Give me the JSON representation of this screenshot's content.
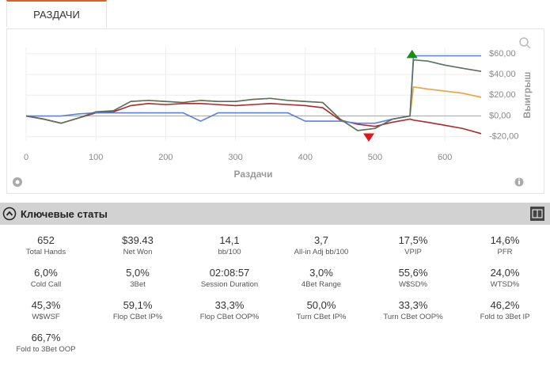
{
  "tab": {
    "label": "РАЗДАЧИ"
  },
  "chart_data": {
    "type": "line",
    "x_label": "Раздачи",
    "y_label": "Выигрыш",
    "x": [
      0,
      25,
      50,
      75,
      100,
      125,
      150,
      175,
      200,
      225,
      250,
      275,
      300,
      325,
      350,
      375,
      400,
      425,
      450,
      475,
      500,
      525,
      550,
      555,
      575,
      600,
      625,
      652
    ],
    "series": [
      {
        "color": "#f0a040",
        "values": [
          0,
          -3,
          -7,
          -2,
          4,
          5,
          14,
          15,
          14,
          13,
          15,
          14,
          14,
          16,
          17,
          15,
          14,
          13,
          -3,
          -14,
          -12,
          -3,
          0,
          28,
          26,
          24,
          22,
          18
        ]
      },
      {
        "color": "#b02828",
        "values": [
          0,
          -3,
          -7,
          -2,
          3,
          4,
          10,
          12,
          11,
          12,
          12,
          11,
          10,
          11,
          12,
          11,
          10,
          8,
          -4,
          -8,
          -10,
          -6,
          -3,
          -4,
          -6,
          -9,
          -12,
          -17
        ]
      },
      {
        "color": "#5b80e6",
        "values": [
          0,
          0,
          0,
          2,
          3,
          3,
          3,
          3,
          3,
          3,
          -5,
          3,
          3,
          3,
          3,
          3,
          -5,
          -5,
          -5,
          -7,
          -7,
          -3,
          0,
          58,
          58,
          58,
          58,
          58
        ]
      },
      {
        "color": "#5a7060",
        "values": [
          0,
          -3,
          -7,
          -2,
          4,
          5,
          14,
          15,
          14,
          13,
          15,
          14,
          14,
          16,
          17,
          15,
          14,
          13,
          -3,
          -14,
          -12,
          -3,
          0,
          54,
          53,
          49,
          46,
          43
        ]
      }
    ],
    "markers": [
      {
        "x": 553,
        "y": 59,
        "color": "#1a8a1a",
        "shape": "up"
      },
      {
        "x": 491,
        "y": -20,
        "color": "#e01818",
        "shape": "down"
      }
    ],
    "xlim": [
      0,
      652
    ],
    "xticks": [
      0,
      100,
      200,
      300,
      400,
      500,
      600
    ],
    "ylim": [
      -24,
      66
    ],
    "yticks": [
      {
        "value": -20,
        "label": "-$20,00"
      },
      {
        "value": 0,
        "label": "$0,00"
      },
      {
        "value": 20,
        "label": "$20,00"
      },
      {
        "value": 40,
        "label": "$40,00"
      },
      {
        "value": 60,
        "label": "$60,00"
      }
    ],
    "grid": true
  },
  "stats": {
    "title": "Ключевые статы",
    "items": [
      {
        "value": "652",
        "label": "Total Hands"
      },
      {
        "value": "$39.43",
        "label": "Net Won"
      },
      {
        "value": "14,1",
        "label": "bb/100"
      },
      {
        "value": "3,7",
        "label": "All-in Adj bb/100"
      },
      {
        "value": "17,5%",
        "label": "VPIP"
      },
      {
        "value": "14,6%",
        "label": "PFR"
      },
      {
        "value": "6,0%",
        "label": "Cold Call"
      },
      {
        "value": "5,0%",
        "label": "3Bet"
      },
      {
        "value": "02:08:57",
        "label": "Session Duration"
      },
      {
        "value": "3,0%",
        "label": "4Bet Range"
      },
      {
        "value": "55,6%",
        "label": "W$SD%"
      },
      {
        "value": "24,0%",
        "label": "WTSD%"
      },
      {
        "value": "45,3%",
        "label": "W$WSF"
      },
      {
        "value": "59,1%",
        "label": "Flop CBet IP%"
      },
      {
        "value": "33,3%",
        "label": "Flop CBet OOP%"
      },
      {
        "value": "50,0%",
        "label": "Turn CBet IP%"
      },
      {
        "value": "33,3%",
        "label": "Turn CBet OOP%"
      },
      {
        "value": "46,2%",
        "label": "Fold to 3Bet IP"
      },
      {
        "value": "66,7%",
        "label": "Fold to 3Bet OOP"
      }
    ]
  }
}
